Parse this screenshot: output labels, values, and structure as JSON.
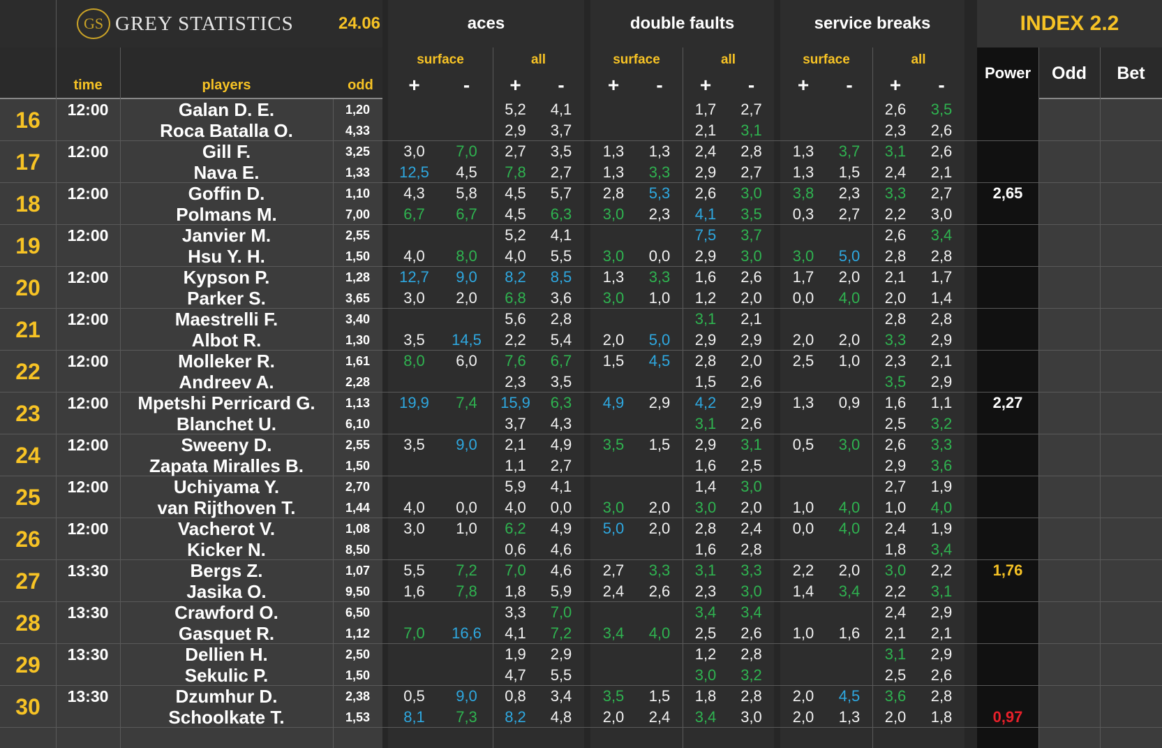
{
  "header": {
    "logo_mark": "GS",
    "brand": "GREY STATISTICS",
    "date": "24.06",
    "groups": [
      "aces",
      "double faults",
      "service breaks"
    ],
    "index": "INDEX 2.2",
    "cols": {
      "time": "time",
      "players": "players",
      "odd": "odd"
    },
    "sub": {
      "surface": "surface",
      "all": "all"
    },
    "plus": "+",
    "minus": "-",
    "power": "Power",
    "index_odd": "Odd",
    "bet": "Bet"
  },
  "colors": {
    "gold": "#f7c325",
    "green": "#2fb350",
    "blue": "#2ea8e0",
    "red": "#e8202a",
    "white": "#ffffff"
  },
  "matches": [
    {
      "n": "16",
      "time": "12:00",
      "p1": "Galan D. E.",
      "p2": "Roca Batalla O.",
      "o1": "1,20",
      "o2": "4,33",
      "power": "",
      "pc": "",
      "s1": [
        "",
        "",
        "5,2",
        "4,1",
        "",
        "",
        "1,7",
        "2,7",
        "",
        "",
        "2,6",
        "3,5"
      ],
      "c1": [
        "",
        "",
        "",
        "",
        "",
        "",
        "",
        "",
        "",
        "",
        "",
        "g"
      ],
      "s2": [
        "",
        "",
        "2,9",
        "3,7",
        "",
        "",
        "2,1",
        "3,1",
        "",
        "",
        "2,3",
        "2,6"
      ],
      "c2": [
        "",
        "",
        "",
        "",
        "",
        "",
        "",
        "g",
        "",
        "",
        "",
        ""
      ]
    },
    {
      "n": "17",
      "time": "12:00",
      "p1": "Gill F.",
      "p2": "Nava E.",
      "o1": "3,25",
      "o2": "1,33",
      "power": "",
      "pc": "",
      "s1": [
        "3,0",
        "7,0",
        "2,7",
        "3,5",
        "1,3",
        "1,3",
        "2,4",
        "2,8",
        "1,3",
        "3,7",
        "3,1",
        "2,6"
      ],
      "c1": [
        "",
        "g",
        "",
        "",
        "",
        "",
        "",
        "",
        "",
        "g",
        "g",
        ""
      ],
      "s2": [
        "12,5",
        "4,5",
        "7,8",
        "2,7",
        "1,3",
        "3,3",
        "2,9",
        "2,7",
        "1,3",
        "1,5",
        "2,4",
        "2,1"
      ],
      "c2": [
        "b",
        "",
        "g",
        "",
        "",
        "g",
        "",
        "",
        "",
        "",
        "",
        ""
      ]
    },
    {
      "n": "18",
      "time": "12:00",
      "p1": "Goffin D.",
      "p2": "Polmans M.",
      "o1": "1,10",
      "o2": "7,00",
      "power": "2,65",
      "pc": "w",
      "s1": [
        "4,3",
        "5,8",
        "4,5",
        "5,7",
        "2,8",
        "5,3",
        "2,6",
        "3,0",
        "3,8",
        "2,3",
        "3,3",
        "2,7"
      ],
      "c1": [
        "",
        "",
        "",
        "",
        "",
        "b",
        "",
        "g",
        "g",
        "",
        "g",
        ""
      ],
      "s2": [
        "6,7",
        "6,7",
        "4,5",
        "6,3",
        "3,0",
        "2,3",
        "4,1",
        "3,5",
        "0,3",
        "2,7",
        "2,2",
        "3,0"
      ],
      "c2": [
        "g",
        "g",
        "",
        "g",
        "g",
        "",
        "b",
        "g",
        "",
        "",
        "",
        ""
      ]
    },
    {
      "n": "19",
      "time": "12:00",
      "p1": "Janvier M.",
      "p2": "Hsu Y. H.",
      "o1": "2,55",
      "o2": "1,50",
      "power": "",
      "pc": "",
      "s1": [
        "",
        "",
        "5,2",
        "4,1",
        "",
        "",
        "7,5",
        "3,7",
        "",
        "",
        "2,6",
        "3,4"
      ],
      "c1": [
        "",
        "",
        "",
        "",
        "",
        "",
        "b",
        "g",
        "",
        "",
        "",
        "g"
      ],
      "s2": [
        "4,0",
        "8,0",
        "4,0",
        "5,5",
        "3,0",
        "0,0",
        "2,9",
        "3,0",
        "3,0",
        "5,0",
        "2,8",
        "2,8"
      ],
      "c2": [
        "",
        "g",
        "",
        "",
        "g",
        "",
        "",
        "g",
        "g",
        "b",
        "",
        ""
      ]
    },
    {
      "n": "20",
      "time": "12:00",
      "p1": "Kypson P.",
      "p2": "Parker S.",
      "o1": "1,28",
      "o2": "3,65",
      "power": "",
      "pc": "",
      "s1": [
        "12,7",
        "9,0",
        "8,2",
        "8,5",
        "1,3",
        "3,3",
        "1,6",
        "2,6",
        "1,7",
        "2,0",
        "2,1",
        "1,7"
      ],
      "c1": [
        "b",
        "b",
        "b",
        "b",
        "",
        "g",
        "",
        "",
        "",
        "",
        "",
        ""
      ],
      "s2": [
        "3,0",
        "2,0",
        "6,8",
        "3,6",
        "3,0",
        "1,0",
        "1,2",
        "2,0",
        "0,0",
        "4,0",
        "2,0",
        "1,4"
      ],
      "c2": [
        "",
        "",
        "g",
        "",
        "g",
        "",
        "",
        "",
        "",
        "g",
        "",
        ""
      ]
    },
    {
      "n": "21",
      "time": "12:00",
      "p1": "Maestrelli F.",
      "p2": "Albot R.",
      "o1": "3,40",
      "o2": "1,30",
      "power": "",
      "pc": "",
      "s1": [
        "",
        "",
        "5,6",
        "2,8",
        "",
        "",
        "3,1",
        "2,1",
        "",
        "",
        "2,8",
        "2,8"
      ],
      "c1": [
        "",
        "",
        "",
        "",
        "",
        "",
        "g",
        "",
        "",
        "",
        "",
        ""
      ],
      "s2": [
        "3,5",
        "14,5",
        "2,2",
        "5,4",
        "2,0",
        "5,0",
        "2,9",
        "2,9",
        "2,0",
        "2,0",
        "3,3",
        "2,9"
      ],
      "c2": [
        "",
        "b",
        "",
        "",
        "",
        "b",
        "",
        "",
        "",
        "",
        "g",
        ""
      ]
    },
    {
      "n": "22",
      "time": "12:00",
      "p1": "Molleker R.",
      "p2": "Andreev A.",
      "o1": "1,61",
      "o2": "2,28",
      "power": "",
      "pc": "",
      "s1": [
        "8,0",
        "6,0",
        "7,6",
        "6,7",
        "1,5",
        "4,5",
        "2,8",
        "2,0",
        "2,5",
        "1,0",
        "2,3",
        "2,1"
      ],
      "c1": [
        "g",
        "",
        "g",
        "g",
        "",
        "b",
        "",
        "",
        "",
        "",
        "",
        ""
      ],
      "s2": [
        "",
        "",
        "2,3",
        "3,5",
        "",
        "",
        "1,5",
        "2,6",
        "",
        "",
        "3,5",
        "2,9"
      ],
      "c2": [
        "",
        "",
        "",
        "",
        "",
        "",
        "",
        "",
        "",
        "",
        "g",
        ""
      ]
    },
    {
      "n": "23",
      "time": "12:00",
      "p1": "Mpetshi Perricard G.",
      "p2": "Blanchet U.",
      "o1": "1,13",
      "o2": "6,10",
      "power": "2,27",
      "pc": "w",
      "s1": [
        "19,9",
        "7,4",
        "15,9",
        "6,3",
        "4,9",
        "2,9",
        "4,2",
        "2,9",
        "1,3",
        "0,9",
        "1,6",
        "1,1"
      ],
      "c1": [
        "b",
        "g",
        "b",
        "g",
        "b",
        "",
        "b",
        "",
        "",
        "",
        "",
        ""
      ],
      "s2": [
        "",
        "",
        "3,7",
        "4,3",
        "",
        "",
        "3,1",
        "2,6",
        "",
        "",
        "2,5",
        "3,2"
      ],
      "c2": [
        "",
        "",
        "",
        "",
        "",
        "",
        "g",
        "",
        "",
        "",
        "",
        "g"
      ]
    },
    {
      "n": "24",
      "time": "12:00",
      "p1": "Sweeny D.",
      "p2": "Zapata Miralles B.",
      "o1": "2,55",
      "o2": "1,50",
      "power": "",
      "pc": "",
      "s1": [
        "3,5",
        "9,0",
        "2,1",
        "4,9",
        "3,5",
        "1,5",
        "2,9",
        "3,1",
        "0,5",
        "3,0",
        "2,6",
        "3,3"
      ],
      "c1": [
        "",
        "b",
        "",
        "",
        "g",
        "",
        "",
        "g",
        "",
        "g",
        "",
        "g"
      ],
      "s2": [
        "",
        "",
        "1,1",
        "2,7",
        "",
        "",
        "1,6",
        "2,5",
        "",
        "",
        "2,9",
        "3,6"
      ],
      "c2": [
        "",
        "",
        "",
        "",
        "",
        "",
        "",
        "",
        "",
        "",
        "",
        "g"
      ]
    },
    {
      "n": "25",
      "time": "12:00",
      "p1": "Uchiyama Y.",
      "p2": "van Rijthoven T.",
      "o1": "2,70",
      "o2": "1,44",
      "power": "",
      "pc": "",
      "s1": [
        "",
        "",
        "5,9",
        "4,1",
        "",
        "",
        "1,4",
        "3,0",
        "",
        "",
        "2,7",
        "1,9"
      ],
      "c1": [
        "",
        "",
        "",
        "",
        "",
        "",
        "",
        "g",
        "",
        "",
        "",
        ""
      ],
      "s2": [
        "4,0",
        "0,0",
        "4,0",
        "0,0",
        "3,0",
        "2,0",
        "3,0",
        "2,0",
        "1,0",
        "4,0",
        "1,0",
        "4,0"
      ],
      "c2": [
        "",
        "",
        "",
        "",
        "g",
        "",
        "g",
        "",
        "",
        "g",
        "",
        "g"
      ]
    },
    {
      "n": "26",
      "time": "12:00",
      "p1": "Vacherot V.",
      "p2": "Kicker N.",
      "o1": "1,08",
      "o2": "8,50",
      "power": "",
      "pc": "",
      "s1": [
        "3,0",
        "1,0",
        "6,2",
        "4,9",
        "5,0",
        "2,0",
        "2,8",
        "2,4",
        "0,0",
        "4,0",
        "2,4",
        "1,9"
      ],
      "c1": [
        "",
        "",
        "g",
        "",
        "b",
        "",
        "",
        "",
        "",
        "g",
        "",
        ""
      ],
      "s2": [
        "",
        "",
        "0,6",
        "4,6",
        "",
        "",
        "1,6",
        "2,8",
        "",
        "",
        "1,8",
        "3,4"
      ],
      "c2": [
        "",
        "",
        "",
        "",
        "",
        "",
        "",
        "",
        "",
        "",
        "",
        "g"
      ]
    },
    {
      "n": "27",
      "time": "13:30",
      "p1": "Bergs Z.",
      "p2": "Jasika O.",
      "o1": "1,07",
      "o2": "9,50",
      "power": "1,76",
      "pc": "y",
      "s1": [
        "5,5",
        "7,2",
        "7,0",
        "4,6",
        "2,7",
        "3,3",
        "3,1",
        "3,3",
        "2,2",
        "2,0",
        "3,0",
        "2,2"
      ],
      "c1": [
        "",
        "g",
        "g",
        "",
        "",
        "g",
        "g",
        "g",
        "",
        "",
        "g",
        ""
      ],
      "s2": [
        "1,6",
        "7,8",
        "1,8",
        "5,9",
        "2,4",
        "2,6",
        "2,3",
        "3,0",
        "1,4",
        "3,4",
        "2,2",
        "3,1"
      ],
      "c2": [
        "",
        "g",
        "",
        "",
        "",
        "",
        "",
        "g",
        "",
        "g",
        "",
        "g"
      ]
    },
    {
      "n": "28",
      "time": "13:30",
      "p1": "Crawford O.",
      "p2": "Gasquet R.",
      "o1": "6,50",
      "o2": "1,12",
      "power": "",
      "pc": "",
      "s1": [
        "",
        "",
        "3,3",
        "7,0",
        "",
        "",
        "3,4",
        "3,4",
        "",
        "",
        "2,4",
        "2,9"
      ],
      "c1": [
        "",
        "",
        "",
        "g",
        "",
        "",
        "g",
        "g",
        "",
        "",
        "",
        ""
      ],
      "s2": [
        "7,0",
        "16,6",
        "4,1",
        "7,2",
        "3,4",
        "4,0",
        "2,5",
        "2,6",
        "1,0",
        "1,6",
        "2,1",
        "2,1"
      ],
      "c2": [
        "g",
        "b",
        "",
        "g",
        "g",
        "g",
        "",
        "",
        "",
        "",
        "",
        ""
      ]
    },
    {
      "n": "29",
      "time": "13:30",
      "p1": "Dellien H.",
      "p2": "Sekulic P.",
      "o1": "2,50",
      "o2": "1,50",
      "power": "",
      "pc": "",
      "s1": [
        "",
        "",
        "1,9",
        "2,9",
        "",
        "",
        "1,2",
        "2,8",
        "",
        "",
        "3,1",
        "2,9"
      ],
      "c1": [
        "",
        "",
        "",
        "",
        "",
        "",
        "",
        "",
        "",
        "",
        "g",
        ""
      ],
      "s2": [
        "",
        "",
        "4,7",
        "5,5",
        "",
        "",
        "3,0",
        "3,2",
        "",
        "",
        "2,5",
        "2,6"
      ],
      "c2": [
        "",
        "",
        "",
        "",
        "",
        "",
        "g",
        "g",
        "",
        "",
        "",
        ""
      ]
    },
    {
      "n": "30",
      "time": "13:30",
      "p1": "Dzumhur D.",
      "p2": "Schoolkate T.",
      "o1": "2,38",
      "o2": "1,53",
      "power": "0,97",
      "pc": "r",
      "s1": [
        "0,5",
        "9,0",
        "0,8",
        "3,4",
        "3,5",
        "1,5",
        "1,8",
        "2,8",
        "2,0",
        "4,5",
        "3,6",
        "2,8"
      ],
      "c1": [
        "",
        "b",
        "",
        "",
        "g",
        "",
        "",
        "",
        "",
        "b",
        "g",
        ""
      ],
      "s2": [
        "8,1",
        "7,3",
        "8,2",
        "4,8",
        "2,0",
        "2,4",
        "3,4",
        "3,0",
        "2,0",
        "1,3",
        "2,0",
        "1,8"
      ],
      "c2": [
        "b",
        "g",
        "b",
        "",
        "",
        "",
        "g",
        "",
        "",
        "",
        "",
        ""
      ]
    }
  ]
}
